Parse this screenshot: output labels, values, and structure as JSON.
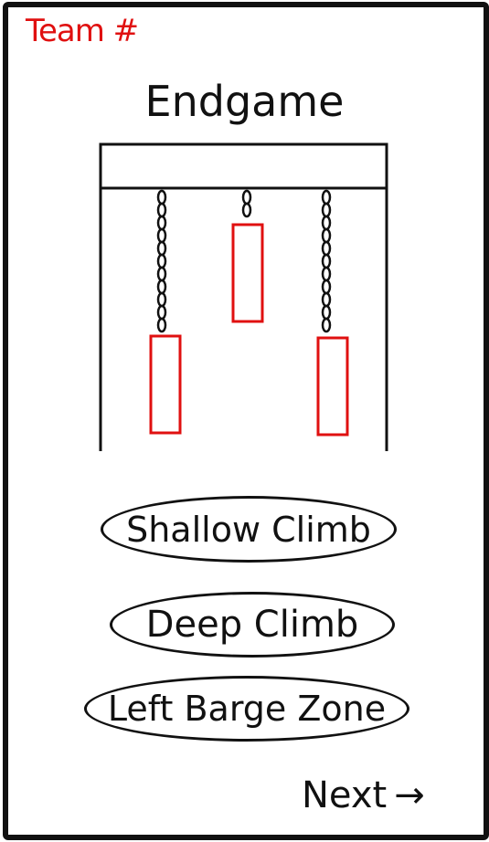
{
  "header": {
    "team_label": "Team #",
    "title": "Endgame"
  },
  "options": {
    "shallow_climb": "Shallow Climb",
    "deep_climb": "Deep Climb",
    "left_barge_zone": "Left Barge Zone"
  },
  "footer": {
    "next_label": "Next",
    "next_arrow": "→"
  },
  "colors": {
    "accent": "#e01010",
    "ink": "#111111"
  },
  "icons": {
    "cage": "barge-cage-diagram",
    "chain": "chain-icon"
  }
}
